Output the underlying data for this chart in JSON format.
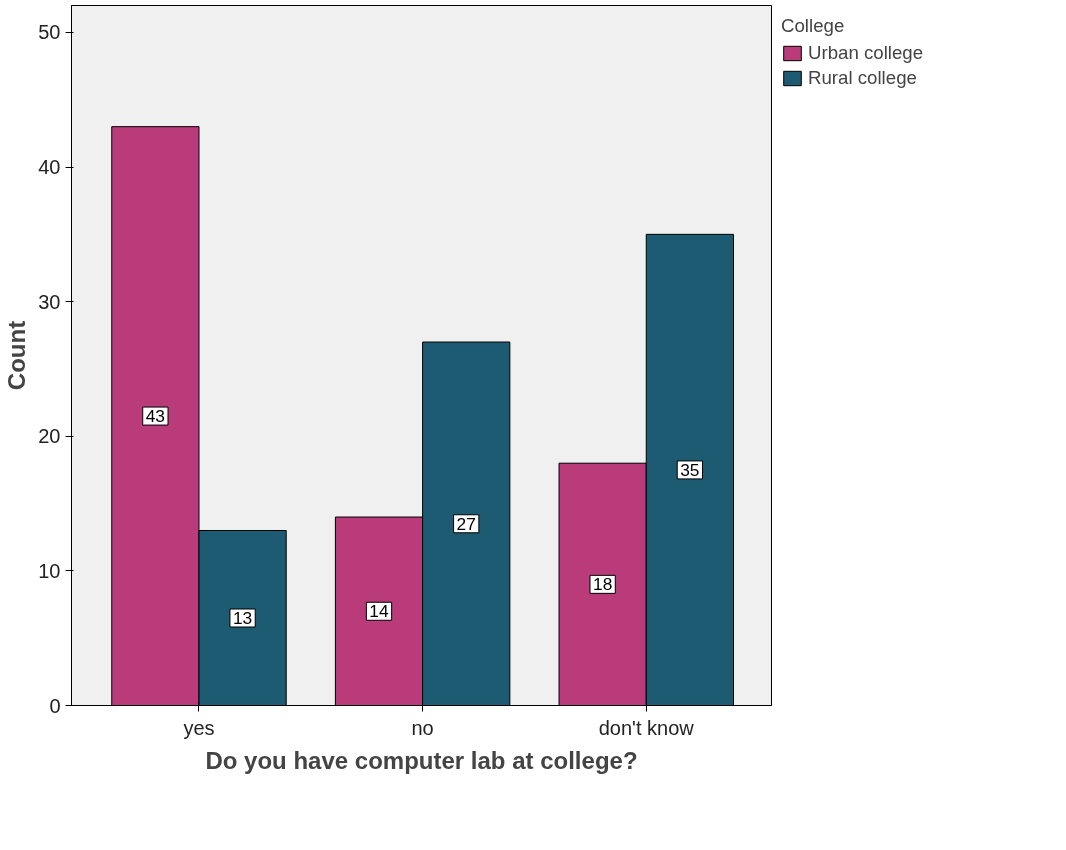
{
  "chart_data": {
    "type": "bar",
    "xlabel": "Do you have computer lab at college?",
    "ylabel": "Count",
    "legend_title": "College",
    "categories": [
      "yes",
      "no",
      "don't know"
    ],
    "series": [
      {
        "name": "Urban college",
        "color": "#b93b7a",
        "values": [
          43,
          14,
          18
        ]
      },
      {
        "name": "Rural college",
        "color": "#1d5b72",
        "values": [
          13,
          27,
          35
        ]
      }
    ],
    "ylim": [
      0,
      52
    ],
    "yticks": [
      0,
      10,
      20,
      30,
      40,
      50
    ],
    "data_labels": true,
    "grid": false,
    "legend": "top right"
  }
}
